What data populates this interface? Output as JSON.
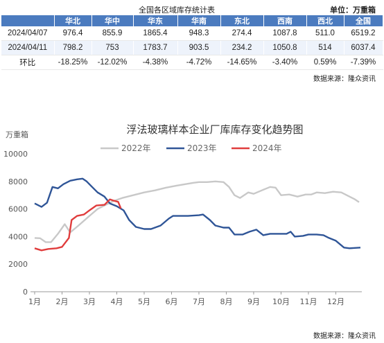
{
  "table": {
    "title": "全国各区域库存统计表",
    "unit": "单位：万重箱",
    "headers": [
      "",
      "华北",
      "华中",
      "华东",
      "华南",
      "东北",
      "西南",
      "西北",
      "全国"
    ],
    "rows": [
      [
        "2024/04/07",
        "976.4",
        "855.9",
        "1865.4",
        "948.3",
        "274.4",
        "1087.8",
        "511.0",
        "6519.2"
      ],
      [
        "2024/04/11",
        "798.2",
        "753",
        "1783.7",
        "903.5",
        "234.2",
        "1050.8",
        "514",
        "6037.4"
      ],
      [
        "环比",
        "-18.25%",
        "-12.02%",
        "-4.38%",
        "-4.72%",
        "-14.65%",
        "-3.40%",
        "0.59%",
        "-7.39%"
      ]
    ],
    "source": "数据来源：隆众资讯"
  },
  "chart_data": {
    "type": "line",
    "title": "浮法玻璃样本企业厂库库存变化趋势图",
    "ylabel": "万重箱",
    "xlabel": "",
    "x_tick_labels": [
      "1月",
      "2月",
      "3月",
      "4月",
      "5月",
      "6月",
      "7月",
      "8月",
      "9月",
      "10月",
      "11月",
      "12月"
    ],
    "x_range": [
      1,
      12.9
    ],
    "ylim": [
      0,
      10000
    ],
    "y_ticks": [
      0,
      2000,
      4000,
      6000,
      8000,
      10000
    ],
    "grid": false,
    "legend_position": "top-center",
    "series": [
      {
        "name": "2022年",
        "color": "#c8c8c8",
        "points": [
          [
            1.0,
            3900
          ],
          [
            1.2,
            3880
          ],
          [
            1.4,
            3600
          ],
          [
            1.6,
            3600
          ],
          [
            1.85,
            4200
          ],
          [
            2.1,
            4900
          ],
          [
            2.3,
            4300
          ],
          [
            2.6,
            4800
          ],
          [
            3.0,
            5500
          ],
          [
            3.3,
            6000
          ],
          [
            3.6,
            6300
          ],
          [
            3.9,
            6600
          ],
          [
            4.2,
            6800
          ],
          [
            4.6,
            7000
          ],
          [
            5.0,
            7200
          ],
          [
            5.4,
            7350
          ],
          [
            5.8,
            7550
          ],
          [
            6.2,
            7700
          ],
          [
            6.5,
            7800
          ],
          [
            6.8,
            7900
          ],
          [
            7.0,
            7950
          ],
          [
            7.3,
            7950
          ],
          [
            7.6,
            8000
          ],
          [
            7.9,
            7950
          ],
          [
            8.1,
            7600
          ],
          [
            8.3,
            7000
          ],
          [
            8.5,
            6800
          ],
          [
            8.8,
            7200
          ],
          [
            9.0,
            7100
          ],
          [
            9.3,
            7350
          ],
          [
            9.6,
            7600
          ],
          [
            9.8,
            7550
          ],
          [
            10.0,
            7000
          ],
          [
            10.3,
            7050
          ],
          [
            10.6,
            6900
          ],
          [
            10.9,
            7050
          ],
          [
            11.1,
            7050
          ],
          [
            11.3,
            7200
          ],
          [
            11.6,
            7150
          ],
          [
            11.9,
            7250
          ],
          [
            12.2,
            7200
          ],
          [
            12.5,
            6900
          ],
          [
            12.7,
            6700
          ],
          [
            12.85,
            6500
          ]
        ]
      },
      {
        "name": "2023年",
        "color": "#2f5597",
        "points": [
          [
            1.0,
            6400
          ],
          [
            1.25,
            6150
          ],
          [
            1.45,
            6450
          ],
          [
            1.65,
            7600
          ],
          [
            1.85,
            7500
          ],
          [
            2.05,
            7800
          ],
          [
            2.3,
            8050
          ],
          [
            2.55,
            8150
          ],
          [
            2.75,
            8200
          ],
          [
            2.9,
            8000
          ],
          [
            3.1,
            7600
          ],
          [
            3.3,
            7200
          ],
          [
            3.55,
            6900
          ],
          [
            3.75,
            6400
          ],
          [
            4.0,
            6200
          ],
          [
            4.25,
            5900
          ],
          [
            4.45,
            5200
          ],
          [
            4.7,
            4700
          ],
          [
            5.0,
            4550
          ],
          [
            5.25,
            4550
          ],
          [
            5.6,
            4800
          ],
          [
            5.9,
            5300
          ],
          [
            6.05,
            5500
          ],
          [
            6.3,
            5500
          ],
          [
            6.6,
            5500
          ],
          [
            7.0,
            5550
          ],
          [
            7.15,
            5600
          ],
          [
            7.4,
            5200
          ],
          [
            7.6,
            4800
          ],
          [
            7.9,
            4650
          ],
          [
            8.1,
            4650
          ],
          [
            8.3,
            4150
          ],
          [
            8.6,
            4150
          ],
          [
            8.85,
            4350
          ],
          [
            9.1,
            4500
          ],
          [
            9.35,
            4100
          ],
          [
            9.6,
            4200
          ],
          [
            9.9,
            4200
          ],
          [
            10.2,
            4200
          ],
          [
            10.35,
            4350
          ],
          [
            10.5,
            4000
          ],
          [
            10.8,
            4050
          ],
          [
            11.0,
            4150
          ],
          [
            11.3,
            4150
          ],
          [
            11.55,
            4100
          ],
          [
            11.75,
            3900
          ],
          [
            12.0,
            3700
          ],
          [
            12.3,
            3200
          ],
          [
            12.5,
            3150
          ],
          [
            12.9,
            3200
          ]
        ]
      },
      {
        "name": "2024年",
        "color": "#e03c3c",
        "points": [
          [
            1.0,
            3150
          ],
          [
            1.25,
            3000
          ],
          [
            1.5,
            3100
          ],
          [
            1.8,
            3150
          ],
          [
            2.0,
            3250
          ],
          [
            2.25,
            3900
          ],
          [
            2.35,
            5200
          ],
          [
            2.55,
            5500
          ],
          [
            2.8,
            5600
          ],
          [
            3.0,
            5900
          ],
          [
            3.25,
            6250
          ],
          [
            3.55,
            6300
          ],
          [
            3.75,
            6700
          ],
          [
            3.9,
            6600
          ],
          [
            4.05,
            6519
          ],
          [
            4.15,
            6037
          ]
        ]
      }
    ]
  },
  "chart_source": "数据来源：隆众资讯"
}
